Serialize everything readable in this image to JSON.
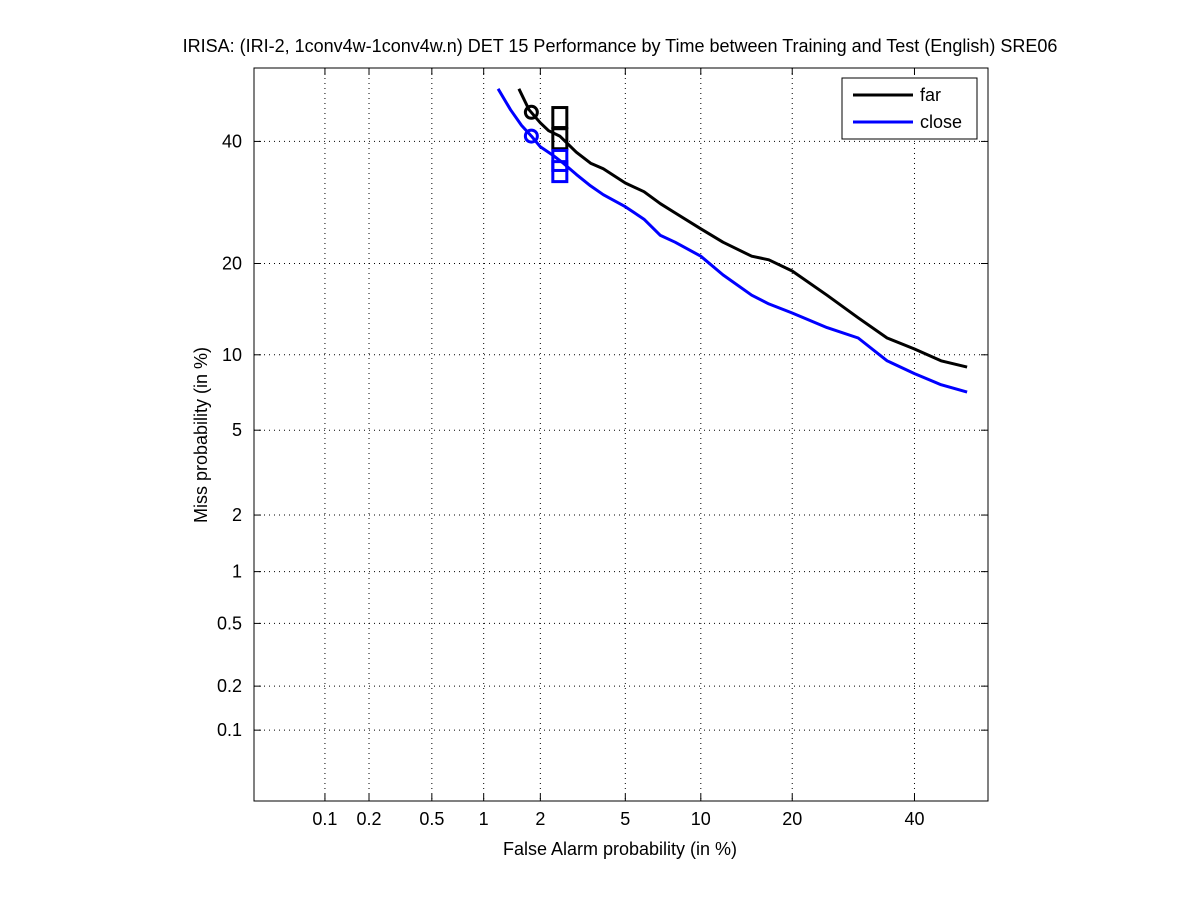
{
  "chart_data": {
    "type": "line",
    "title": "IRISA: (IRI-2, 1conv4w-1conv4w.n) DET 15 Performance by Time between Training and Test (English) SRE06",
    "xlabel": "False Alarm probability (in %)",
    "ylabel": "Miss probability (in %)",
    "x_scale": "normal-deviate (probit)",
    "y_scale": "normal-deviate (probit)",
    "xlim": [
      0.03,
      54
    ],
    "ylim": [
      0.03,
      54
    ],
    "x_ticks": [
      0.1,
      0.2,
      0.5,
      1,
      2,
      5,
      10,
      20,
      40
    ],
    "y_ticks": [
      0.1,
      0.2,
      0.5,
      1,
      2,
      5,
      10,
      20,
      40
    ],
    "x_tick_labels": [
      "0.1",
      "0.2",
      "0.5",
      "1",
      "2",
      "5",
      "10",
      "20",
      "40"
    ],
    "y_tick_labels": [
      "0.1",
      "0.2",
      "0.5",
      "1",
      "2",
      "5",
      "10",
      "20",
      "40"
    ],
    "grid": true,
    "legend_position": "top-right",
    "series": [
      {
        "name": "far",
        "color": "#000000",
        "x": [
          1.55,
          1.75,
          2.0,
          2.2,
          2.5,
          3.0,
          3.5,
          4.0,
          5.0,
          6.0,
          7.0,
          8.0,
          10.0,
          12.0,
          15.0,
          17.0,
          20.0,
          25.0,
          30.0,
          35.0,
          40.0,
          45.0,
          50.0
        ],
        "y": [
          50,
          46,
          43.5,
          42,
          41,
          38,
          36,
          35,
          32.5,
          31,
          29,
          27.5,
          25,
          23,
          21,
          20.5,
          19,
          16,
          13.5,
          11.5,
          10.5,
          9.5,
          9.0
        ]
      },
      {
        "name": "close",
        "color": "#0000ff",
        "x": [
          1.2,
          1.4,
          1.6,
          1.8,
          2.0,
          2.3,
          2.6,
          3.0,
          3.5,
          4.0,
          5.0,
          6.0,
          7.0,
          8.0,
          10.0,
          12.0,
          15.0,
          17.0,
          20.0,
          25.0,
          30.0,
          35.0,
          40.0,
          45.0,
          50.0
        ],
        "y": [
          50,
          46,
          43,
          41,
          39,
          37.5,
          36,
          34,
          32,
          30.5,
          28.5,
          26.5,
          24,
          23,
          21,
          18.5,
          16,
          15,
          14,
          12.5,
          11.5,
          9.5,
          8.5,
          7.7,
          7.2
        ]
      }
    ],
    "markers": [
      {
        "series": "far",
        "shape": "circle",
        "x": 1.8,
        "y": 45.5
      },
      {
        "series": "far",
        "shape": "square",
        "x": 2.5,
        "y": 44.5
      },
      {
        "series": "far",
        "shape": "square",
        "x": 2.5,
        "y": 40.5
      },
      {
        "series": "close",
        "shape": "circle",
        "x": 1.8,
        "y": 41
      },
      {
        "series": "close",
        "shape": "square",
        "x": 2.5,
        "y": 36.5
      },
      {
        "series": "close",
        "shape": "square",
        "x": 2.5,
        "y": 34.5
      }
    ]
  }
}
